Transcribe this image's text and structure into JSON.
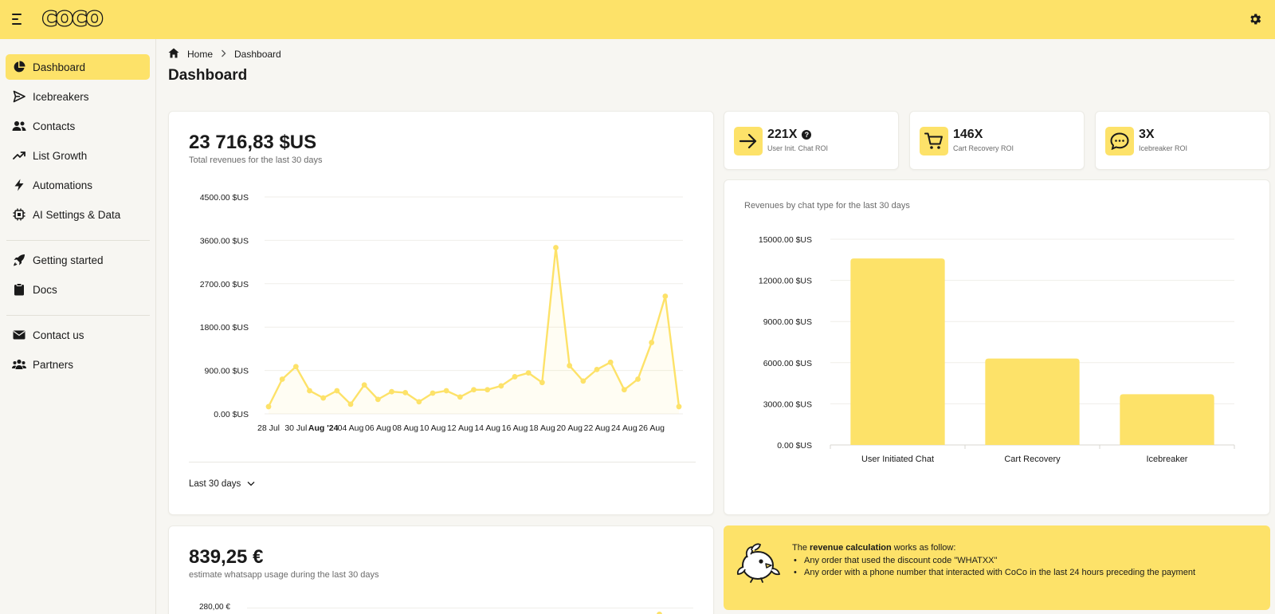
{
  "app": {
    "logo": "COCO"
  },
  "sidebar": {
    "items": [
      {
        "label": "Dashboard",
        "icon": "pie-chart-icon"
      },
      {
        "label": "Icebreakers",
        "icon": "send-icon"
      },
      {
        "label": "Contacts",
        "icon": "users-icon"
      },
      {
        "label": "List Growth",
        "icon": "trending-up-icon"
      },
      {
        "label": "Automations",
        "icon": "bolt-icon"
      },
      {
        "label": "AI Settings & Data",
        "icon": "chip-icon"
      },
      {
        "label": "Getting started",
        "icon": "rocket-icon"
      },
      {
        "label": "Docs",
        "icon": "clipboard-icon"
      },
      {
        "label": "Contact us",
        "icon": "mail-icon"
      },
      {
        "label": "Partners",
        "icon": "people-group-icon"
      }
    ]
  },
  "breadcrumb": {
    "home": "Home",
    "current": "Dashboard"
  },
  "page": {
    "title": "Dashboard"
  },
  "revenue": {
    "amount": "23 716,83 $US",
    "subtitle": "Total revenues for the last 30 days",
    "range_label": "Last 30 days"
  },
  "kpis": [
    {
      "value": "221X",
      "label": "User Init. Chat ROI",
      "icon": "arrow-right-icon"
    },
    {
      "value": "146X",
      "label": "Cart Recovery ROI",
      "icon": "cart-icon"
    },
    {
      "value": "3X",
      "label": "Icebreaker ROI",
      "icon": "chat-bubble-icon"
    }
  ],
  "bar_card": {
    "title": "Revenues by chat type for the last 30 days"
  },
  "whatsapp": {
    "amount": "839,25 €",
    "subtitle": "estimate whatsapp usage during the last 30 days",
    "top_tick": "280,00 €"
  },
  "info": {
    "prefix": "The ",
    "bold": "revenue calculation",
    "suffix": " works as follow:",
    "bullets": [
      "Any order that used the discount code \"WHATXX\"",
      "Any order with a phone number that interacted with CoCo in the last 24 hours preceding the payment"
    ]
  },
  "colors": {
    "accent": "#fde269",
    "text": "#1a1a1a",
    "muted": "#6b6b6b",
    "background": "#f7f6f2"
  },
  "chart_data": [
    {
      "type": "line",
      "title": "",
      "x_tick_labels": [
        "28 Jul",
        "30 Jul",
        "Aug '24",
        "04 Aug",
        "06 Aug",
        "08 Aug",
        "10 Aug",
        "12 Aug",
        "14 Aug",
        "16 Aug",
        "18 Aug",
        "20 Aug",
        "22 Aug",
        "24 Aug",
        "26 Aug"
      ],
      "y_tick_labels": [
        "0.00 $US",
        "900.00 $US",
        "1800.00 $US",
        "2700.00 $US",
        "3600.00 $US",
        "4500.00 $US"
      ],
      "ylim": [
        0,
        4500
      ],
      "y_ticks": [
        0,
        900,
        1800,
        2700,
        3600,
        4500
      ],
      "x": [
        "2024-07-28",
        "2024-07-29",
        "2024-07-30",
        "2024-07-31",
        "2024-08-01",
        "2024-08-02",
        "2024-08-03",
        "2024-08-04",
        "2024-08-05",
        "2024-08-06",
        "2024-08-07",
        "2024-08-08",
        "2024-08-09",
        "2024-08-10",
        "2024-08-11",
        "2024-08-12",
        "2024-08-13",
        "2024-08-14",
        "2024-08-15",
        "2024-08-16",
        "2024-08-17",
        "2024-08-18",
        "2024-08-19",
        "2024-08-20",
        "2024-08-21",
        "2024-08-22",
        "2024-08-23",
        "2024-08-24",
        "2024-08-25",
        "2024-08-26",
        "2024-08-27"
      ],
      "values": [
        150,
        720,
        980,
        480,
        330,
        480,
        200,
        600,
        300,
        460,
        440,
        250,
        430,
        480,
        350,
        500,
        500,
        580,
        770,
        850,
        650,
        3450,
        1000,
        680,
        920,
        1070,
        500,
        720,
        1480,
        2440,
        150
      ],
      "grid": true,
      "color": "#fde269"
    },
    {
      "type": "bar",
      "title": "Revenues by chat type for the last 30 days",
      "categories": [
        "User Initiated Chat",
        "Cart Recovery",
        "Icebreaker"
      ],
      "values": [
        13600,
        6300,
        3700
      ],
      "y_tick_labels": [
        "0.00 $US",
        "3000.00 $US",
        "6000.00 $US",
        "9000.00 $US",
        "12000.00 $US",
        "15000.00 $US"
      ],
      "ylim": [
        0,
        15000
      ],
      "y_ticks": [
        0,
        3000,
        6000,
        9000,
        12000,
        15000
      ],
      "grid": true,
      "color": "#fde269"
    }
  ]
}
